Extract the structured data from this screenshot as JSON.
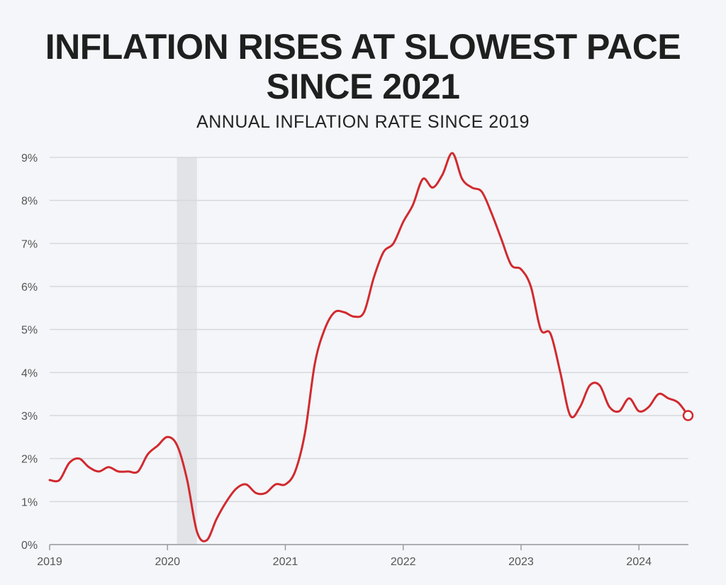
{
  "title_line1": "INFLATION RISES AT SLOWEST PACE",
  "title_line2": "SINCE 2021",
  "chart_data": {
    "type": "line",
    "title": "INFLATION RISES AT SLOWEST PACE SINCE 2021",
    "subtitle": "ANNUAL INFLATION RATE SINCE 2019",
    "xlabel": "",
    "ylabel": "",
    "y_ticks": [
      "0%",
      "1%",
      "2%",
      "3%",
      "4%",
      "5%",
      "6%",
      "7%",
      "8%",
      "9%"
    ],
    "x_ticks": [
      "2019",
      "2020",
      "2021",
      "2022",
      "2023",
      "2024"
    ],
    "ylim": [
      0,
      9
    ],
    "xlim": [
      2019.0,
      2024.42
    ],
    "grid": true,
    "line_color": "#d12a2f",
    "shade_color": "#e1e3e7",
    "recession_shade": [
      2020.08,
      2020.25
    ],
    "series": [
      {
        "name": "Annual inflation rate",
        "x": [
          2019.0,
          2019.083,
          2019.167,
          2019.25,
          2019.333,
          2019.417,
          2019.5,
          2019.583,
          2019.667,
          2019.75,
          2019.833,
          2019.917,
          2020.0,
          2020.083,
          2020.167,
          2020.25,
          2020.333,
          2020.417,
          2020.5,
          2020.583,
          2020.667,
          2020.75,
          2020.833,
          2020.917,
          2021.0,
          2021.083,
          2021.167,
          2021.25,
          2021.333,
          2021.417,
          2021.5,
          2021.583,
          2021.667,
          2021.75,
          2021.833,
          2021.917,
          2022.0,
          2022.083,
          2022.167,
          2022.25,
          2022.333,
          2022.417,
          2022.5,
          2022.583,
          2022.667,
          2022.75,
          2022.833,
          2022.917,
          2023.0,
          2023.083,
          2023.167,
          2023.25,
          2023.333,
          2023.417,
          2023.5,
          2023.583,
          2023.667,
          2023.75,
          2023.833,
          2023.917,
          2024.0,
          2024.083,
          2024.167,
          2024.25,
          2024.333,
          2024.417
        ],
        "values": [
          1.5,
          1.5,
          1.9,
          2.0,
          1.8,
          1.7,
          1.8,
          1.7,
          1.7,
          1.7,
          2.1,
          2.3,
          2.5,
          2.3,
          1.5,
          0.3,
          0.1,
          0.6,
          1.0,
          1.3,
          1.4,
          1.2,
          1.2,
          1.4,
          1.4,
          1.7,
          2.6,
          4.2,
          5.0,
          5.4,
          5.4,
          5.3,
          5.4,
          6.2,
          6.8,
          7.0,
          7.5,
          7.9,
          8.5,
          8.3,
          8.6,
          9.1,
          8.5,
          8.3,
          8.2,
          7.7,
          7.1,
          6.5,
          6.4,
          6.0,
          5.0,
          4.9,
          4.0,
          3.0,
          3.2,
          3.7,
          3.7,
          3.2,
          3.1,
          3.4,
          3.1,
          3.2,
          3.5,
          3.4,
          3.3,
          3.0
        ]
      }
    ],
    "end_marker_value": 3.0
  }
}
